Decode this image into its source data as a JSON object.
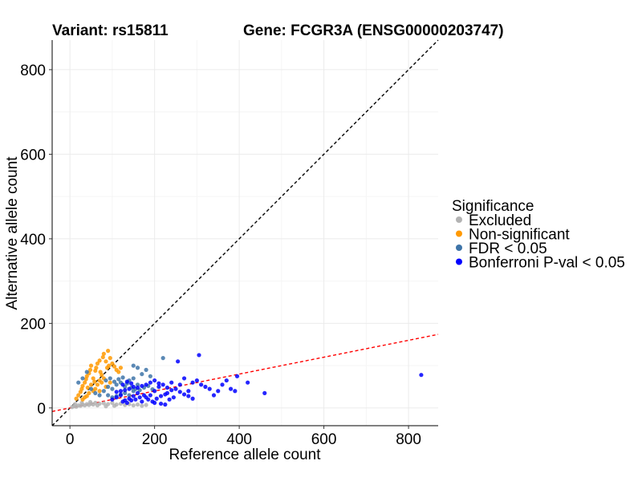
{
  "chart_data": {
    "type": "scatter",
    "title_left": "Variant: rs15811",
    "title_right": "Gene: FCGR3A (ENSG00000203747)",
    "xlabel": "Reference allele count",
    "ylabel": "Alternative allele count",
    "xlim": [
      -42,
      870
    ],
    "ylim": [
      -42,
      870
    ],
    "x_ticks": [
      0,
      200,
      400,
      600,
      800
    ],
    "y_ticks": [
      0,
      200,
      400,
      600,
      800
    ],
    "grid": true,
    "reference_lines": [
      {
        "kind": "identity",
        "slope": 1,
        "intercept": 0,
        "color": "#000000"
      },
      {
        "kind": "fit",
        "slope": 0.2,
        "intercept": 0,
        "color": "#ff0000"
      }
    ],
    "legend": {
      "title": "Significance",
      "placement": "right",
      "entries": [
        {
          "label": "Excluded",
          "color": "#b3b3b3"
        },
        {
          "label": "Non-significant",
          "color": "#ff9900"
        },
        {
          "label": "FDR < 0.05",
          "color": "#3e74a8"
        },
        {
          "label": "Bonferroni P-val < 0.05",
          "color": "#0000ff"
        }
      ]
    },
    "series": [
      {
        "name": "Excluded",
        "color": "#b3b3b3",
        "points": [
          [
            5,
            2
          ],
          [
            10,
            4
          ],
          [
            15,
            3
          ],
          [
            20,
            6
          ],
          [
            25,
            5
          ],
          [
            30,
            8
          ],
          [
            35,
            6
          ],
          [
            40,
            9
          ],
          [
            45,
            7
          ],
          [
            50,
            10
          ],
          [
            55,
            8
          ],
          [
            60,
            12
          ],
          [
            70,
            10
          ],
          [
            80,
            11
          ],
          [
            90,
            9
          ],
          [
            100,
            12
          ],
          [
            110,
            8
          ],
          [
            120,
            10
          ],
          [
            130,
            7
          ],
          [
            140,
            9
          ],
          [
            150,
            6
          ],
          [
            160,
            8
          ],
          [
            170,
            5
          ],
          [
            180,
            7
          ],
          [
            12,
            9
          ],
          [
            28,
            12
          ],
          [
            48,
            14
          ],
          [
            65,
            6
          ],
          [
            85,
            4
          ],
          [
            105,
            5
          ]
        ]
      },
      {
        "name": "Non-significant",
        "color": "#ff9900",
        "points": [
          [
            15,
            22
          ],
          [
            20,
            30
          ],
          [
            25,
            38
          ],
          [
            28,
            45
          ],
          [
            30,
            52
          ],
          [
            35,
            60
          ],
          [
            38,
            68
          ],
          [
            40,
            75
          ],
          [
            45,
            82
          ],
          [
            48,
            90
          ],
          [
            50,
            100
          ],
          [
            55,
            70
          ],
          [
            58,
            62
          ],
          [
            60,
            88
          ],
          [
            62,
            95
          ],
          [
            65,
            105
          ],
          [
            70,
            112
          ],
          [
            72,
            85
          ],
          [
            75,
            78
          ],
          [
            78,
            120
          ],
          [
            80,
            128
          ],
          [
            85,
            110
          ],
          [
            88,
            95
          ],
          [
            90,
            135
          ],
          [
            92,
            100
          ],
          [
            95,
            118
          ],
          [
            60,
            45
          ],
          [
            55,
            40
          ],
          [
            45,
            35
          ],
          [
            40,
            28
          ],
          [
            35,
            25
          ],
          [
            30,
            20
          ],
          [
            65,
            55
          ],
          [
            70,
            65
          ],
          [
            75,
            60
          ],
          [
            80,
            70
          ],
          [
            50,
            55
          ],
          [
            42,
            48
          ],
          [
            100,
            105
          ],
          [
            105,
            98
          ],
          [
            110,
            90
          ],
          [
            115,
            85
          ],
          [
            120,
            95
          ],
          [
            70,
            40
          ],
          [
            85,
            50
          ],
          [
            95,
            60
          ]
        ]
      },
      {
        "name": "FDR < 0.05",
        "color": "#3e74a8",
        "points": [
          [
            20,
            60
          ],
          [
            30,
            70
          ],
          [
            40,
            85
          ],
          [
            50,
            45
          ],
          [
            60,
            35
          ],
          [
            70,
            30
          ],
          [
            80,
            40
          ],
          [
            90,
            50
          ],
          [
            100,
            45
          ],
          [
            110,
            55
          ],
          [
            120,
            60
          ],
          [
            130,
            50
          ],
          [
            140,
            65
          ],
          [
            150,
            70
          ],
          [
            160,
            55
          ],
          [
            170,
            80
          ],
          [
            180,
            90
          ],
          [
            190,
            75
          ],
          [
            150,
            100
          ],
          [
            160,
            95
          ],
          [
            220,
            118
          ],
          [
            90,
            30
          ],
          [
            100,
            25
          ],
          [
            110,
            28
          ],
          [
            120,
            32
          ],
          [
            130,
            35
          ],
          [
            140,
            30
          ],
          [
            150,
            40
          ],
          [
            85,
            65
          ],
          [
            95,
            70
          ],
          [
            105,
            62
          ],
          [
            115,
            68
          ],
          [
            125,
            72
          ],
          [
            135,
            58
          ],
          [
            145,
            48
          ],
          [
            155,
            45
          ],
          [
            165,
            42
          ],
          [
            175,
            48
          ],
          [
            185,
            52
          ],
          [
            195,
            44
          ]
        ]
      },
      {
        "name": "Bonferroni P-val < 0.05",
        "color": "#0000ff",
        "points": [
          [
            100,
            20
          ],
          [
            110,
            25
          ],
          [
            120,
            30
          ],
          [
            130,
            18
          ],
          [
            140,
            22
          ],
          [
            150,
            28
          ],
          [
            160,
            35
          ],
          [
            170,
            15
          ],
          [
            180,
            25
          ],
          [
            190,
            30
          ],
          [
            200,
            40
          ],
          [
            210,
            50
          ],
          [
            220,
            55
          ],
          [
            230,
            35
          ],
          [
            240,
            60
          ],
          [
            250,
            45
          ],
          [
            260,
            55
          ],
          [
            270,
            70
          ],
          [
            280,
            40
          ],
          [
            290,
            60
          ],
          [
            300,
            65
          ],
          [
            305,
            125
          ],
          [
            255,
            110
          ],
          [
            310,
            55
          ],
          [
            320,
            50
          ],
          [
            330,
            45
          ],
          [
            340,
            30
          ],
          [
            350,
            40
          ],
          [
            360,
            55
          ],
          [
            370,
            65
          ],
          [
            380,
            45
          ],
          [
            390,
            40
          ],
          [
            395,
            75
          ],
          [
            420,
            60
          ],
          [
            460,
            35
          ],
          [
            830,
            78
          ],
          [
            125,
            15
          ],
          [
            135,
            12
          ],
          [
            145,
            18
          ],
          [
            155,
            20
          ],
          [
            165,
            25
          ],
          [
            175,
            30
          ],
          [
            185,
            20
          ],
          [
            195,
            15
          ],
          [
            205,
            22
          ],
          [
            215,
            28
          ],
          [
            225,
            32
          ],
          [
            235,
            20
          ],
          [
            245,
            25
          ],
          [
            200,
            65
          ],
          [
            210,
            58
          ],
          [
            190,
            60
          ],
          [
            180,
            55
          ],
          [
            230,
            48
          ],
          [
            240,
            42
          ],
          [
            260,
            38
          ],
          [
            270,
            32
          ],
          [
            280,
            28
          ],
          [
            290,
            22
          ],
          [
            200,
            12
          ],
          [
            215,
            10
          ],
          [
            225,
            8
          ],
          [
            150,
            50
          ],
          [
            160,
            48
          ],
          [
            170,
            52
          ],
          [
            140,
            45
          ],
          [
            130,
            42
          ],
          [
            120,
            40
          ],
          [
            110,
            38
          ],
          [
            125,
            55
          ],
          [
            135,
            62
          ],
          [
            145,
            58
          ]
        ]
      }
    ]
  }
}
